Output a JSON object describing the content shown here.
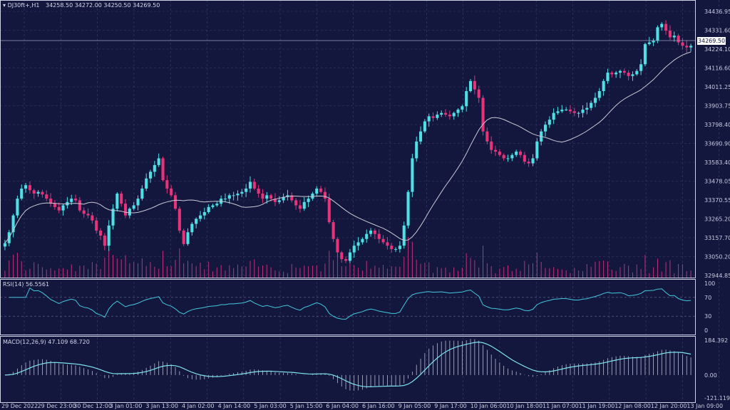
{
  "header": {
    "symbol": "DJ30ft+,H1",
    "ohlc": "34258.50 34272.00 34250.50 34269.50"
  },
  "current_price": "34269.50",
  "price_axis": [
    "34436.95",
    "34331.60",
    "34224.10",
    "34116.60",
    "34011.25",
    "33903.75",
    "33798.40",
    "33690.90",
    "33583.40",
    "33478.05",
    "33370.55",
    "33265.20",
    "33157.70",
    "33050.20",
    "32944.85"
  ],
  "rsi": {
    "label": "RSI(14) 56.5561",
    "axis": [
      "100",
      "70",
      "30",
      "0"
    ]
  },
  "macd": {
    "label": "MACD(12,26,9) 47.109 68.720",
    "axis": [
      "184.392",
      "0.00",
      "-121.119"
    ]
  },
  "time_axis": [
    "29 Dec 2022",
    "29 Dec 23:00",
    "30 Dec 12:00",
    "3 Jan 01:00",
    "3 Jan 13:00",
    "4 Jan 02:00",
    "4 Jan 14:00",
    "5 Jan 03:00",
    "5 Jan 15:00",
    "6 Jan 04:00",
    "6 Jan 16:00",
    "9 Jan 05:00",
    "9 Jan 17:00",
    "10 Jan 06:00",
    "10 Jan 18:00",
    "11 Jan 07:00",
    "11 Jan 19:00",
    "12 Jan 08:00",
    "12 Jan 20:00",
    "13 Jan 09:00"
  ],
  "colors": {
    "background": "#13173d",
    "grid": "#3a3f6e",
    "bull": "#4fe0e6",
    "bear": "#e8327a",
    "ma": "#c9c9d4",
    "rsi_line": "#45c8dc",
    "macd_line": "#7fe3f0",
    "macd_hist": "#b8bbd0",
    "volume": "#c0307a"
  },
  "chart_data": {
    "type": "candlestick",
    "title": "DJ30ft+,H1",
    "y_range": [
      32890,
      34500
    ],
    "closes": [
      33095,
      33160,
      33260,
      33360,
      33420,
      33440,
      33410,
      33390,
      33400,
      33385,
      33360,
      33330,
      33310,
      33290,
      33320,
      33340,
      33360,
      33350,
      33290,
      33270,
      33260,
      33230,
      33170,
      33140,
      33080,
      33200,
      33300,
      33390,
      33330,
      33260,
      33300,
      33320,
      33360,
      33420,
      33480,
      33520,
      33560,
      33600,
      33470,
      33420,
      33380,
      33300,
      33170,
      33090,
      33160,
      33210,
      33240,
      33260,
      33280,
      33310,
      33320,
      33330,
      33360,
      33360,
      33380,
      33380,
      33390,
      33400,
      33420,
      33460,
      33420,
      33390,
      33360,
      33380,
      33360,
      33340,
      33350,
      33370,
      33380,
      33350,
      33320,
      33300,
      33340,
      33360,
      33390,
      33420,
      33400,
      33360,
      33220,
      33120,
      33040,
      33000,
      32990,
      33040,
      33080,
      33100,
      33120,
      33150,
      33170,
      33150,
      33120,
      33100,
      33080,
      33060,
      33060,
      33080,
      33200,
      33400,
      33600,
      33700,
      33760,
      33820,
      33850,
      33840,
      33860,
      33870,
      33860,
      33850,
      33870,
      33890,
      33910,
      34000,
      34060,
      34010,
      33960,
      33760,
      33700,
      33650,
      33640,
      33620,
      33600,
      33600,
      33620,
      33640,
      33620,
      33580,
      33570,
      33600,
      33700,
      33760,
      33800,
      33830,
      33870,
      33880,
      33890,
      33890,
      33880,
      33870,
      33870,
      33890,
      33900,
      33930,
      33960,
      34000,
      34060,
      34110,
      34100,
      34110,
      34120,
      34110,
      34090,
      34100,
      34120,
      34160,
      34280,
      34290,
      34300,
      34380,
      34400,
      34360,
      34320,
      34330,
      34290,
      34270,
      34260,
      34269.5
    ]
  }
}
